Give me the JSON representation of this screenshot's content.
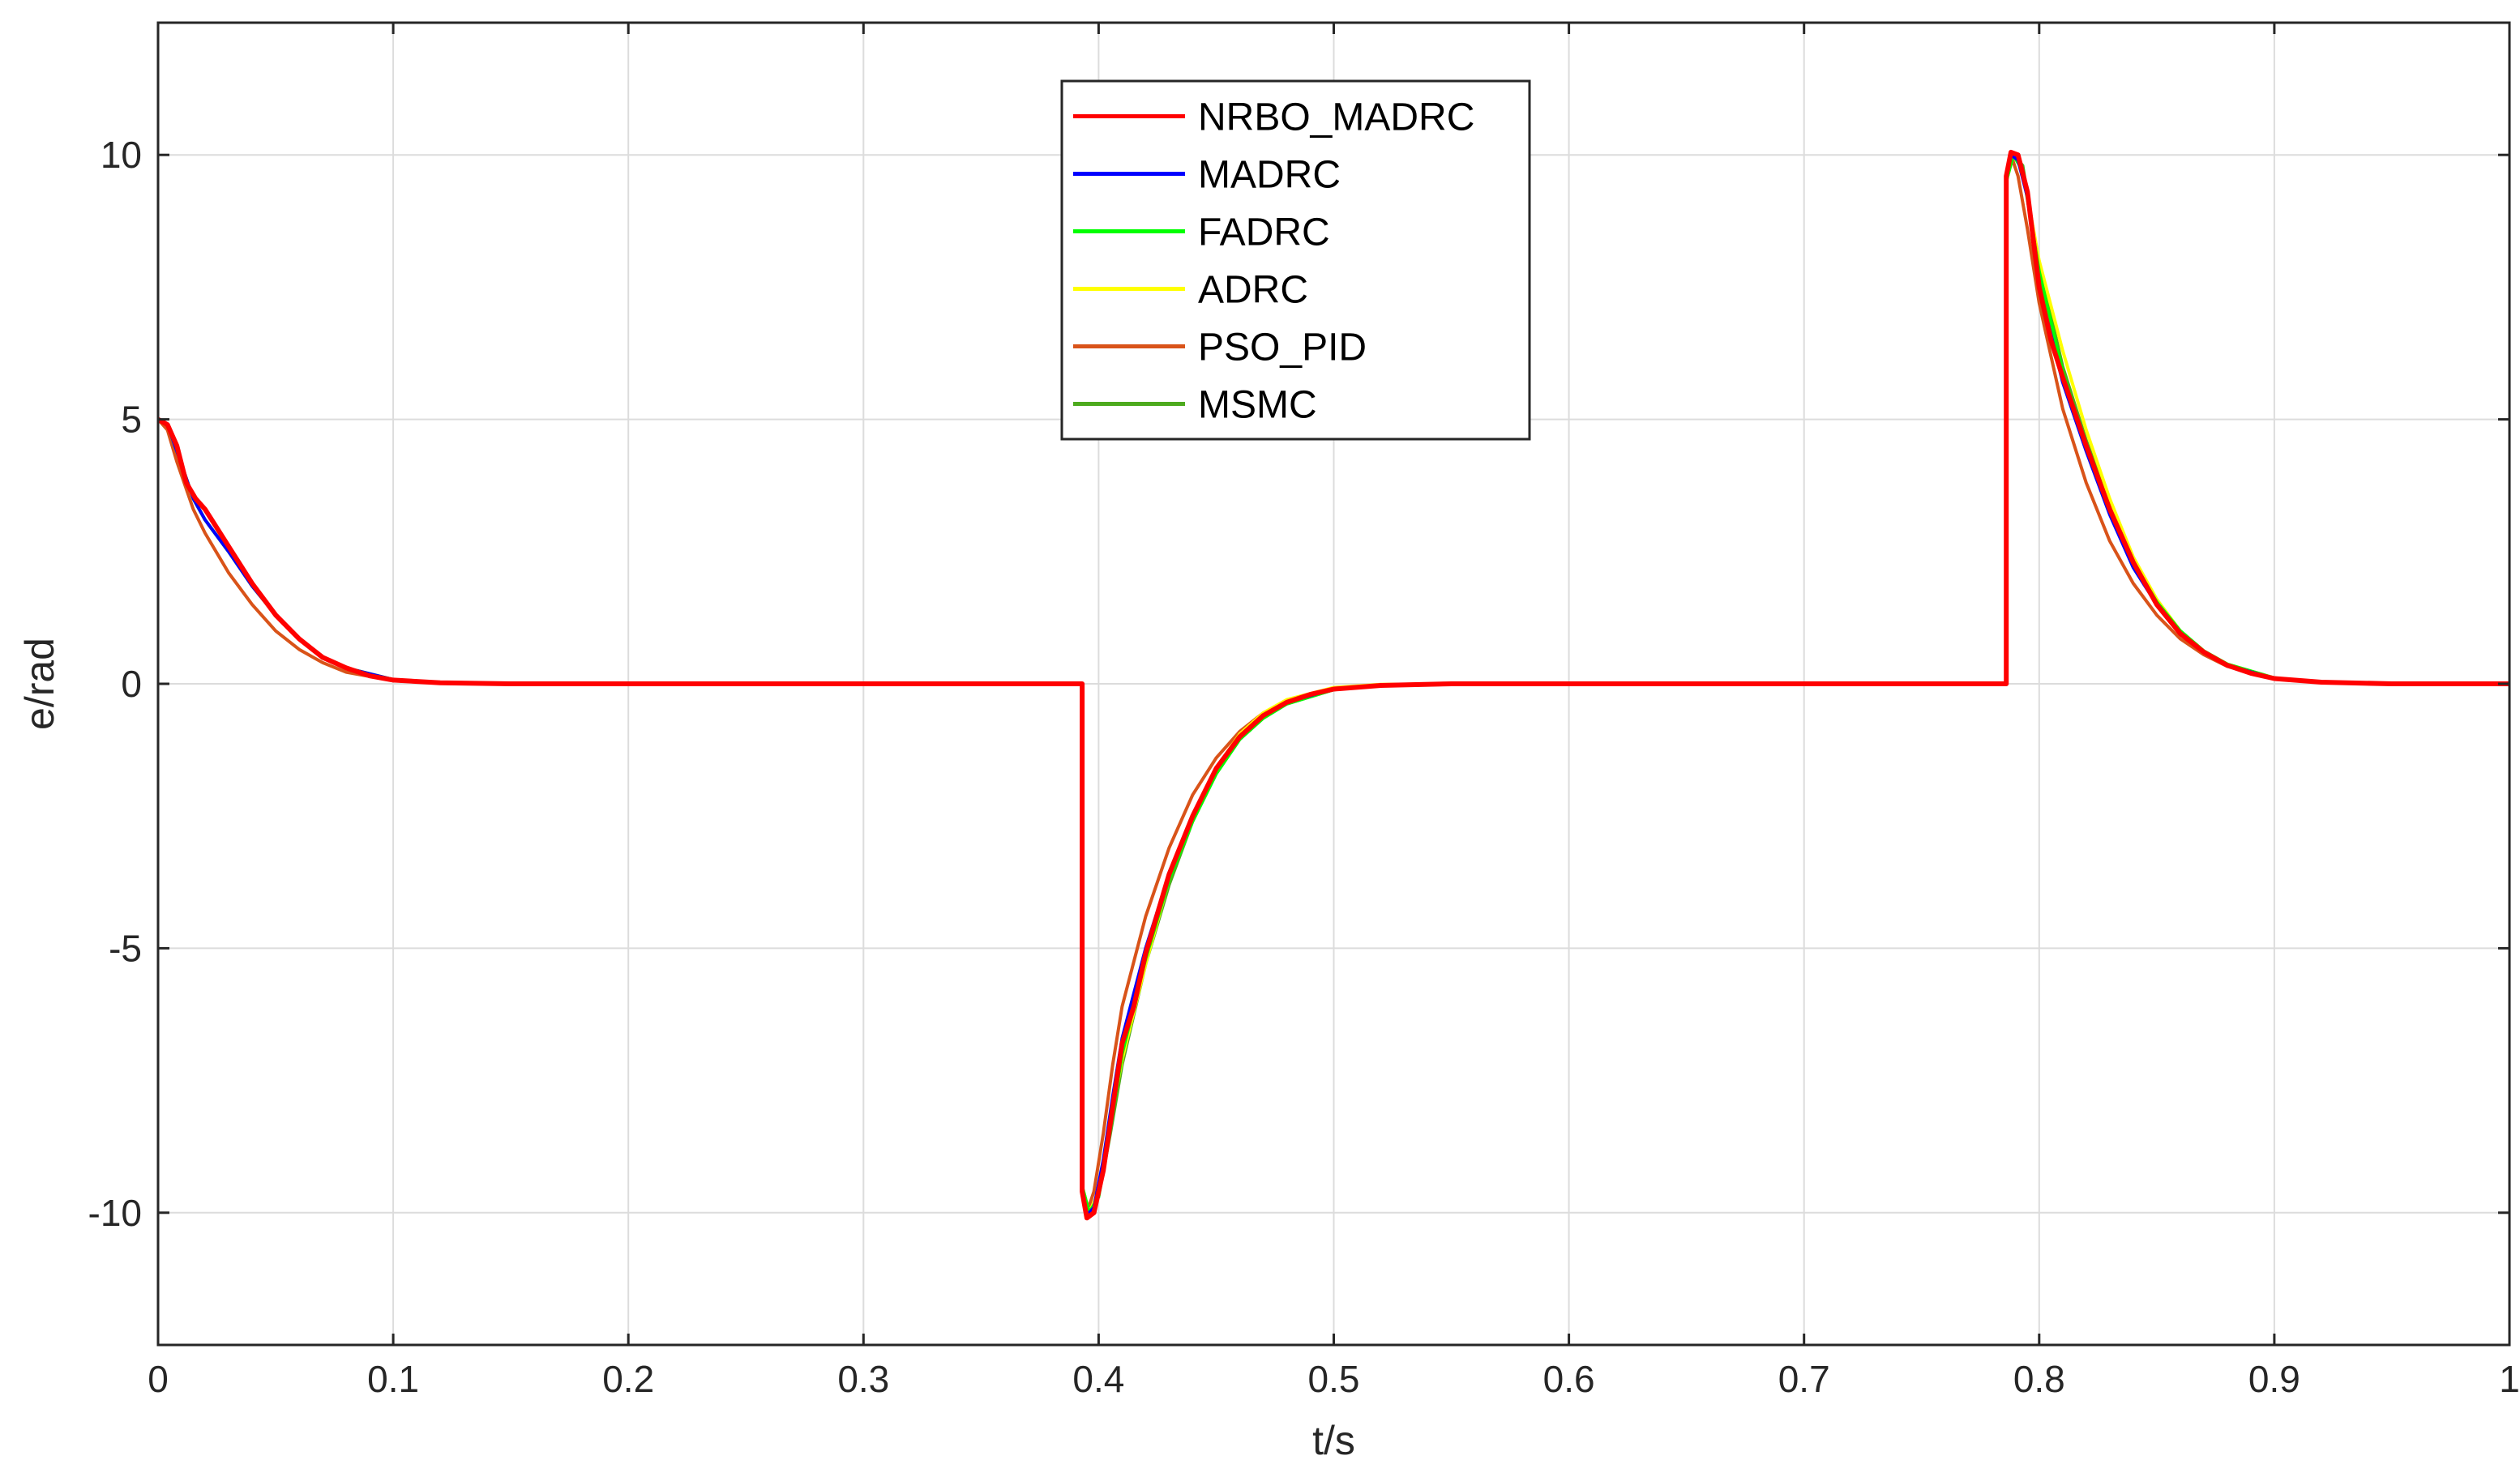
{
  "chart_data": {
    "type": "line",
    "title": "",
    "xlabel": "t/s",
    "ylabel": "e/rad",
    "xlim": [
      0,
      1
    ],
    "ylim": [
      -12.5,
      12.5
    ],
    "xticks": [
      0,
      0.1,
      0.2,
      0.3,
      0.4,
      0.5,
      0.6,
      0.7,
      0.8,
      0.9,
      1
    ],
    "xtick_labels": [
      "0",
      "0.1",
      "0.2",
      "0.3",
      "0.4",
      "0.5",
      "0.6",
      "0.7",
      "0.8",
      "0.9",
      "1"
    ],
    "yticks": [
      -10,
      -5,
      0,
      5,
      10
    ],
    "ytick_labels": [
      "-10",
      "-5",
      "0",
      "5",
      "10"
    ],
    "grid": true,
    "legend_position": "top-center",
    "series": [
      {
        "name": "NRBO_MADRC",
        "color": "#ff0000",
        "points": [
          [
            0,
            5.0
          ],
          [
            0.004,
            4.9
          ],
          [
            0.008,
            4.5
          ],
          [
            0.012,
            3.8
          ],
          [
            0.016,
            3.5
          ],
          [
            0.02,
            3.3
          ],
          [
            0.03,
            2.6
          ],
          [
            0.04,
            1.9
          ],
          [
            0.05,
            1.3
          ],
          [
            0.06,
            0.85
          ],
          [
            0.07,
            0.5
          ],
          [
            0.08,
            0.3
          ],
          [
            0.09,
            0.15
          ],
          [
            0.1,
            0.07
          ],
          [
            0.12,
            0.02
          ],
          [
            0.15,
            0.0
          ],
          [
            0.393,
            0.0
          ],
          [
            0.393,
            -9.6
          ],
          [
            0.395,
            -10.1
          ],
          [
            0.398,
            -10.0
          ],
          [
            0.402,
            -9.2
          ],
          [
            0.406,
            -8.0
          ],
          [
            0.41,
            -6.8
          ],
          [
            0.415,
            -6.1
          ],
          [
            0.42,
            -5.1
          ],
          [
            0.43,
            -3.6
          ],
          [
            0.44,
            -2.5
          ],
          [
            0.45,
            -1.6
          ],
          [
            0.46,
            -1.0
          ],
          [
            0.47,
            -0.6
          ],
          [
            0.48,
            -0.35
          ],
          [
            0.49,
            -0.2
          ],
          [
            0.5,
            -0.1
          ],
          [
            0.52,
            -0.03
          ],
          [
            0.55,
            0.0
          ],
          [
            0.786,
            0.0
          ],
          [
            0.786,
            9.6
          ],
          [
            0.788,
            10.05
          ],
          [
            0.791,
            10.0
          ],
          [
            0.795,
            9.3
          ],
          [
            0.8,
            7.5
          ],
          [
            0.805,
            6.5
          ],
          [
            0.81,
            5.8
          ],
          [
            0.82,
            4.5
          ],
          [
            0.83,
            3.3
          ],
          [
            0.84,
            2.3
          ],
          [
            0.85,
            1.5
          ],
          [
            0.86,
            0.95
          ],
          [
            0.87,
            0.6
          ],
          [
            0.88,
            0.35
          ],
          [
            0.89,
            0.2
          ],
          [
            0.9,
            0.1
          ],
          [
            0.92,
            0.03
          ],
          [
            0.95,
            0.0
          ],
          [
            1.0,
            0.0
          ]
        ]
      },
      {
        "name": "MADRC",
        "color": "#0000ff",
        "points": [
          [
            0,
            5.0
          ],
          [
            0.004,
            4.9
          ],
          [
            0.008,
            4.4
          ],
          [
            0.015,
            3.5
          ],
          [
            0.02,
            3.1
          ],
          [
            0.03,
            2.5
          ],
          [
            0.04,
            1.85
          ],
          [
            0.05,
            1.3
          ],
          [
            0.06,
            0.85
          ],
          [
            0.07,
            0.5
          ],
          [
            0.08,
            0.3
          ],
          [
            0.1,
            0.08
          ],
          [
            0.12,
            0.02
          ],
          [
            0.15,
            0.0
          ],
          [
            0.393,
            0.0
          ],
          [
            0.393,
            -9.6
          ],
          [
            0.395,
            -10.05
          ],
          [
            0.398,
            -9.9
          ],
          [
            0.402,
            -9.0
          ],
          [
            0.406,
            -7.8
          ],
          [
            0.41,
            -6.7
          ],
          [
            0.42,
            -5.0
          ],
          [
            0.43,
            -3.6
          ],
          [
            0.44,
            -2.5
          ],
          [
            0.45,
            -1.6
          ],
          [
            0.46,
            -1.0
          ],
          [
            0.47,
            -0.6
          ],
          [
            0.48,
            -0.35
          ],
          [
            0.5,
            -0.1
          ],
          [
            0.52,
            -0.03
          ],
          [
            0.55,
            0.0
          ],
          [
            0.786,
            0.0
          ],
          [
            0.786,
            9.6
          ],
          [
            0.788,
            10.0
          ],
          [
            0.791,
            9.9
          ],
          [
            0.795,
            9.2
          ],
          [
            0.8,
            7.5
          ],
          [
            0.81,
            5.7
          ],
          [
            0.82,
            4.4
          ],
          [
            0.83,
            3.2
          ],
          [
            0.84,
            2.2
          ],
          [
            0.85,
            1.5
          ],
          [
            0.86,
            0.95
          ],
          [
            0.87,
            0.6
          ],
          [
            0.88,
            0.35
          ],
          [
            0.9,
            0.1
          ],
          [
            0.92,
            0.03
          ],
          [
            0.95,
            0.0
          ],
          [
            1.0,
            0.0
          ]
        ]
      },
      {
        "name": "FADRC",
        "color": "#00ff00",
        "points": [
          [
            0,
            5.0
          ],
          [
            0.004,
            4.9
          ],
          [
            0.008,
            4.4
          ],
          [
            0.015,
            3.5
          ],
          [
            0.02,
            3.1
          ],
          [
            0.03,
            2.5
          ],
          [
            0.04,
            1.85
          ],
          [
            0.05,
            1.3
          ],
          [
            0.06,
            0.85
          ],
          [
            0.07,
            0.5
          ],
          [
            0.08,
            0.3
          ],
          [
            0.1,
            0.08
          ],
          [
            0.12,
            0.02
          ],
          [
            0.15,
            0.0
          ],
          [
            0.393,
            0.0
          ],
          [
            0.393,
            -9.5
          ],
          [
            0.396,
            -10.0
          ],
          [
            0.4,
            -9.7
          ],
          [
            0.405,
            -8.4
          ],
          [
            0.41,
            -7.0
          ],
          [
            0.42,
            -5.2
          ],
          [
            0.43,
            -3.7
          ],
          [
            0.44,
            -2.6
          ],
          [
            0.45,
            -1.7
          ],
          [
            0.46,
            -1.05
          ],
          [
            0.47,
            -0.65
          ],
          [
            0.48,
            -0.38
          ],
          [
            0.5,
            -0.11
          ],
          [
            0.52,
            -0.03
          ],
          [
            0.55,
            0.0
          ],
          [
            0.786,
            0.0
          ],
          [
            0.786,
            9.5
          ],
          [
            0.789,
            10.0
          ],
          [
            0.793,
            9.7
          ],
          [
            0.8,
            7.8
          ],
          [
            0.81,
            5.9
          ],
          [
            0.82,
            4.5
          ],
          [
            0.83,
            3.3
          ],
          [
            0.84,
            2.3
          ],
          [
            0.85,
            1.55
          ],
          [
            0.86,
            1.0
          ],
          [
            0.87,
            0.62
          ],
          [
            0.88,
            0.37
          ],
          [
            0.9,
            0.11
          ],
          [
            0.92,
            0.03
          ],
          [
            0.95,
            0.0
          ],
          [
            1.0,
            0.0
          ]
        ]
      },
      {
        "name": "ADRC",
        "color": "#ffff00",
        "points": [
          [
            0,
            5.0
          ],
          [
            0.004,
            4.9
          ],
          [
            0.008,
            4.4
          ],
          [
            0.015,
            3.5
          ],
          [
            0.02,
            3.1
          ],
          [
            0.03,
            2.5
          ],
          [
            0.04,
            1.85
          ],
          [
            0.05,
            1.3
          ],
          [
            0.06,
            0.85
          ],
          [
            0.07,
            0.5
          ],
          [
            0.08,
            0.3
          ],
          [
            0.1,
            0.08
          ],
          [
            0.12,
            0.02
          ],
          [
            0.15,
            0.0
          ],
          [
            0.393,
            0.0
          ],
          [
            0.393,
            -9.5
          ],
          [
            0.396,
            -10.0
          ],
          [
            0.4,
            -9.6
          ],
          [
            0.405,
            -8.3
          ],
          [
            0.41,
            -7.1
          ],
          [
            0.42,
            -5.3
          ],
          [
            0.43,
            -3.7
          ],
          [
            0.44,
            -2.5
          ],
          [
            0.45,
            -1.6
          ],
          [
            0.46,
            -0.95
          ],
          [
            0.47,
            -0.55
          ],
          [
            0.48,
            -0.3
          ],
          [
            0.5,
            -0.07
          ],
          [
            0.52,
            -0.01
          ],
          [
            0.55,
            0.0
          ],
          [
            0.786,
            0.0
          ],
          [
            0.786,
            9.5
          ],
          [
            0.789,
            10.0
          ],
          [
            0.793,
            9.7
          ],
          [
            0.8,
            8.0
          ],
          [
            0.81,
            6.3
          ],
          [
            0.82,
            4.8
          ],
          [
            0.83,
            3.5
          ],
          [
            0.84,
            2.4
          ],
          [
            0.85,
            1.6
          ],
          [
            0.86,
            1.0
          ],
          [
            0.87,
            0.62
          ],
          [
            0.88,
            0.37
          ],
          [
            0.9,
            0.11
          ],
          [
            0.92,
            0.03
          ],
          [
            0.95,
            0.0
          ],
          [
            1.0,
            0.0
          ]
        ]
      },
      {
        "name": "PSO_PID",
        "color": "#d95319",
        "points": [
          [
            0,
            5.0
          ],
          [
            0.004,
            4.8
          ],
          [
            0.008,
            4.2
          ],
          [
            0.015,
            3.3
          ],
          [
            0.02,
            2.85
          ],
          [
            0.03,
            2.1
          ],
          [
            0.04,
            1.5
          ],
          [
            0.05,
            1.0
          ],
          [
            0.06,
            0.65
          ],
          [
            0.07,
            0.4
          ],
          [
            0.08,
            0.22
          ],
          [
            0.1,
            0.06
          ],
          [
            0.12,
            0.01
          ],
          [
            0.15,
            0.0
          ],
          [
            0.393,
            0.0
          ],
          [
            0.393,
            -9.5
          ],
          [
            0.395,
            -10.0
          ],
          [
            0.398,
            -9.6
          ],
          [
            0.402,
            -8.5
          ],
          [
            0.406,
            -7.2
          ],
          [
            0.41,
            -6.1
          ],
          [
            0.42,
            -4.4
          ],
          [
            0.43,
            -3.1
          ],
          [
            0.44,
            -2.1
          ],
          [
            0.45,
            -1.4
          ],
          [
            0.46,
            -0.9
          ],
          [
            0.47,
            -0.55
          ],
          [
            0.48,
            -0.32
          ],
          [
            0.5,
            -0.09
          ],
          [
            0.52,
            -0.02
          ],
          [
            0.55,
            0.0
          ],
          [
            0.786,
            0.0
          ],
          [
            0.786,
            9.5
          ],
          [
            0.788,
            10.0
          ],
          [
            0.791,
            9.6
          ],
          [
            0.795,
            8.6
          ],
          [
            0.8,
            7.2
          ],
          [
            0.81,
            5.2
          ],
          [
            0.82,
            3.8
          ],
          [
            0.83,
            2.7
          ],
          [
            0.84,
            1.9
          ],
          [
            0.85,
            1.3
          ],
          [
            0.86,
            0.85
          ],
          [
            0.87,
            0.55
          ],
          [
            0.88,
            0.33
          ],
          [
            0.9,
            0.1
          ],
          [
            0.92,
            0.03
          ],
          [
            0.95,
            0.0
          ],
          [
            1.0,
            0.0
          ]
        ]
      },
      {
        "name": "MSMC",
        "color": "#4daa1e",
        "points": [
          [
            0,
            5.0
          ],
          [
            0.004,
            4.9
          ],
          [
            0.008,
            4.4
          ],
          [
            0.015,
            3.5
          ],
          [
            0.02,
            3.1
          ],
          [
            0.03,
            2.5
          ],
          [
            0.04,
            1.85
          ],
          [
            0.05,
            1.3
          ],
          [
            0.06,
            0.85
          ],
          [
            0.07,
            0.5
          ],
          [
            0.08,
            0.3
          ],
          [
            0.1,
            0.08
          ],
          [
            0.12,
            0.02
          ],
          [
            0.15,
            0.0
          ],
          [
            0.393,
            0.0
          ],
          [
            0.393,
            -9.5
          ],
          [
            0.396,
            -10.0
          ],
          [
            0.4,
            -9.7
          ],
          [
            0.405,
            -8.5
          ],
          [
            0.41,
            -7.2
          ],
          [
            0.42,
            -5.3
          ],
          [
            0.43,
            -3.8
          ],
          [
            0.44,
            -2.6
          ],
          [
            0.45,
            -1.7
          ],
          [
            0.46,
            -1.05
          ],
          [
            0.47,
            -0.65
          ],
          [
            0.48,
            -0.38
          ],
          [
            0.5,
            -0.11
          ],
          [
            0.52,
            -0.03
          ],
          [
            0.55,
            0.0
          ],
          [
            0.786,
            0.0
          ],
          [
            0.786,
            9.5
          ],
          [
            0.789,
            10.0
          ],
          [
            0.793,
            9.8
          ],
          [
            0.8,
            7.9
          ],
          [
            0.81,
            6.0
          ],
          [
            0.82,
            4.6
          ],
          [
            0.83,
            3.4
          ],
          [
            0.84,
            2.35
          ],
          [
            0.85,
            1.58
          ],
          [
            0.86,
            1.0
          ],
          [
            0.87,
            0.62
          ],
          [
            0.88,
            0.37
          ],
          [
            0.9,
            0.11
          ],
          [
            0.92,
            0.03
          ],
          [
            0.95,
            0.0
          ],
          [
            1.0,
            0.0
          ]
        ]
      }
    ]
  }
}
